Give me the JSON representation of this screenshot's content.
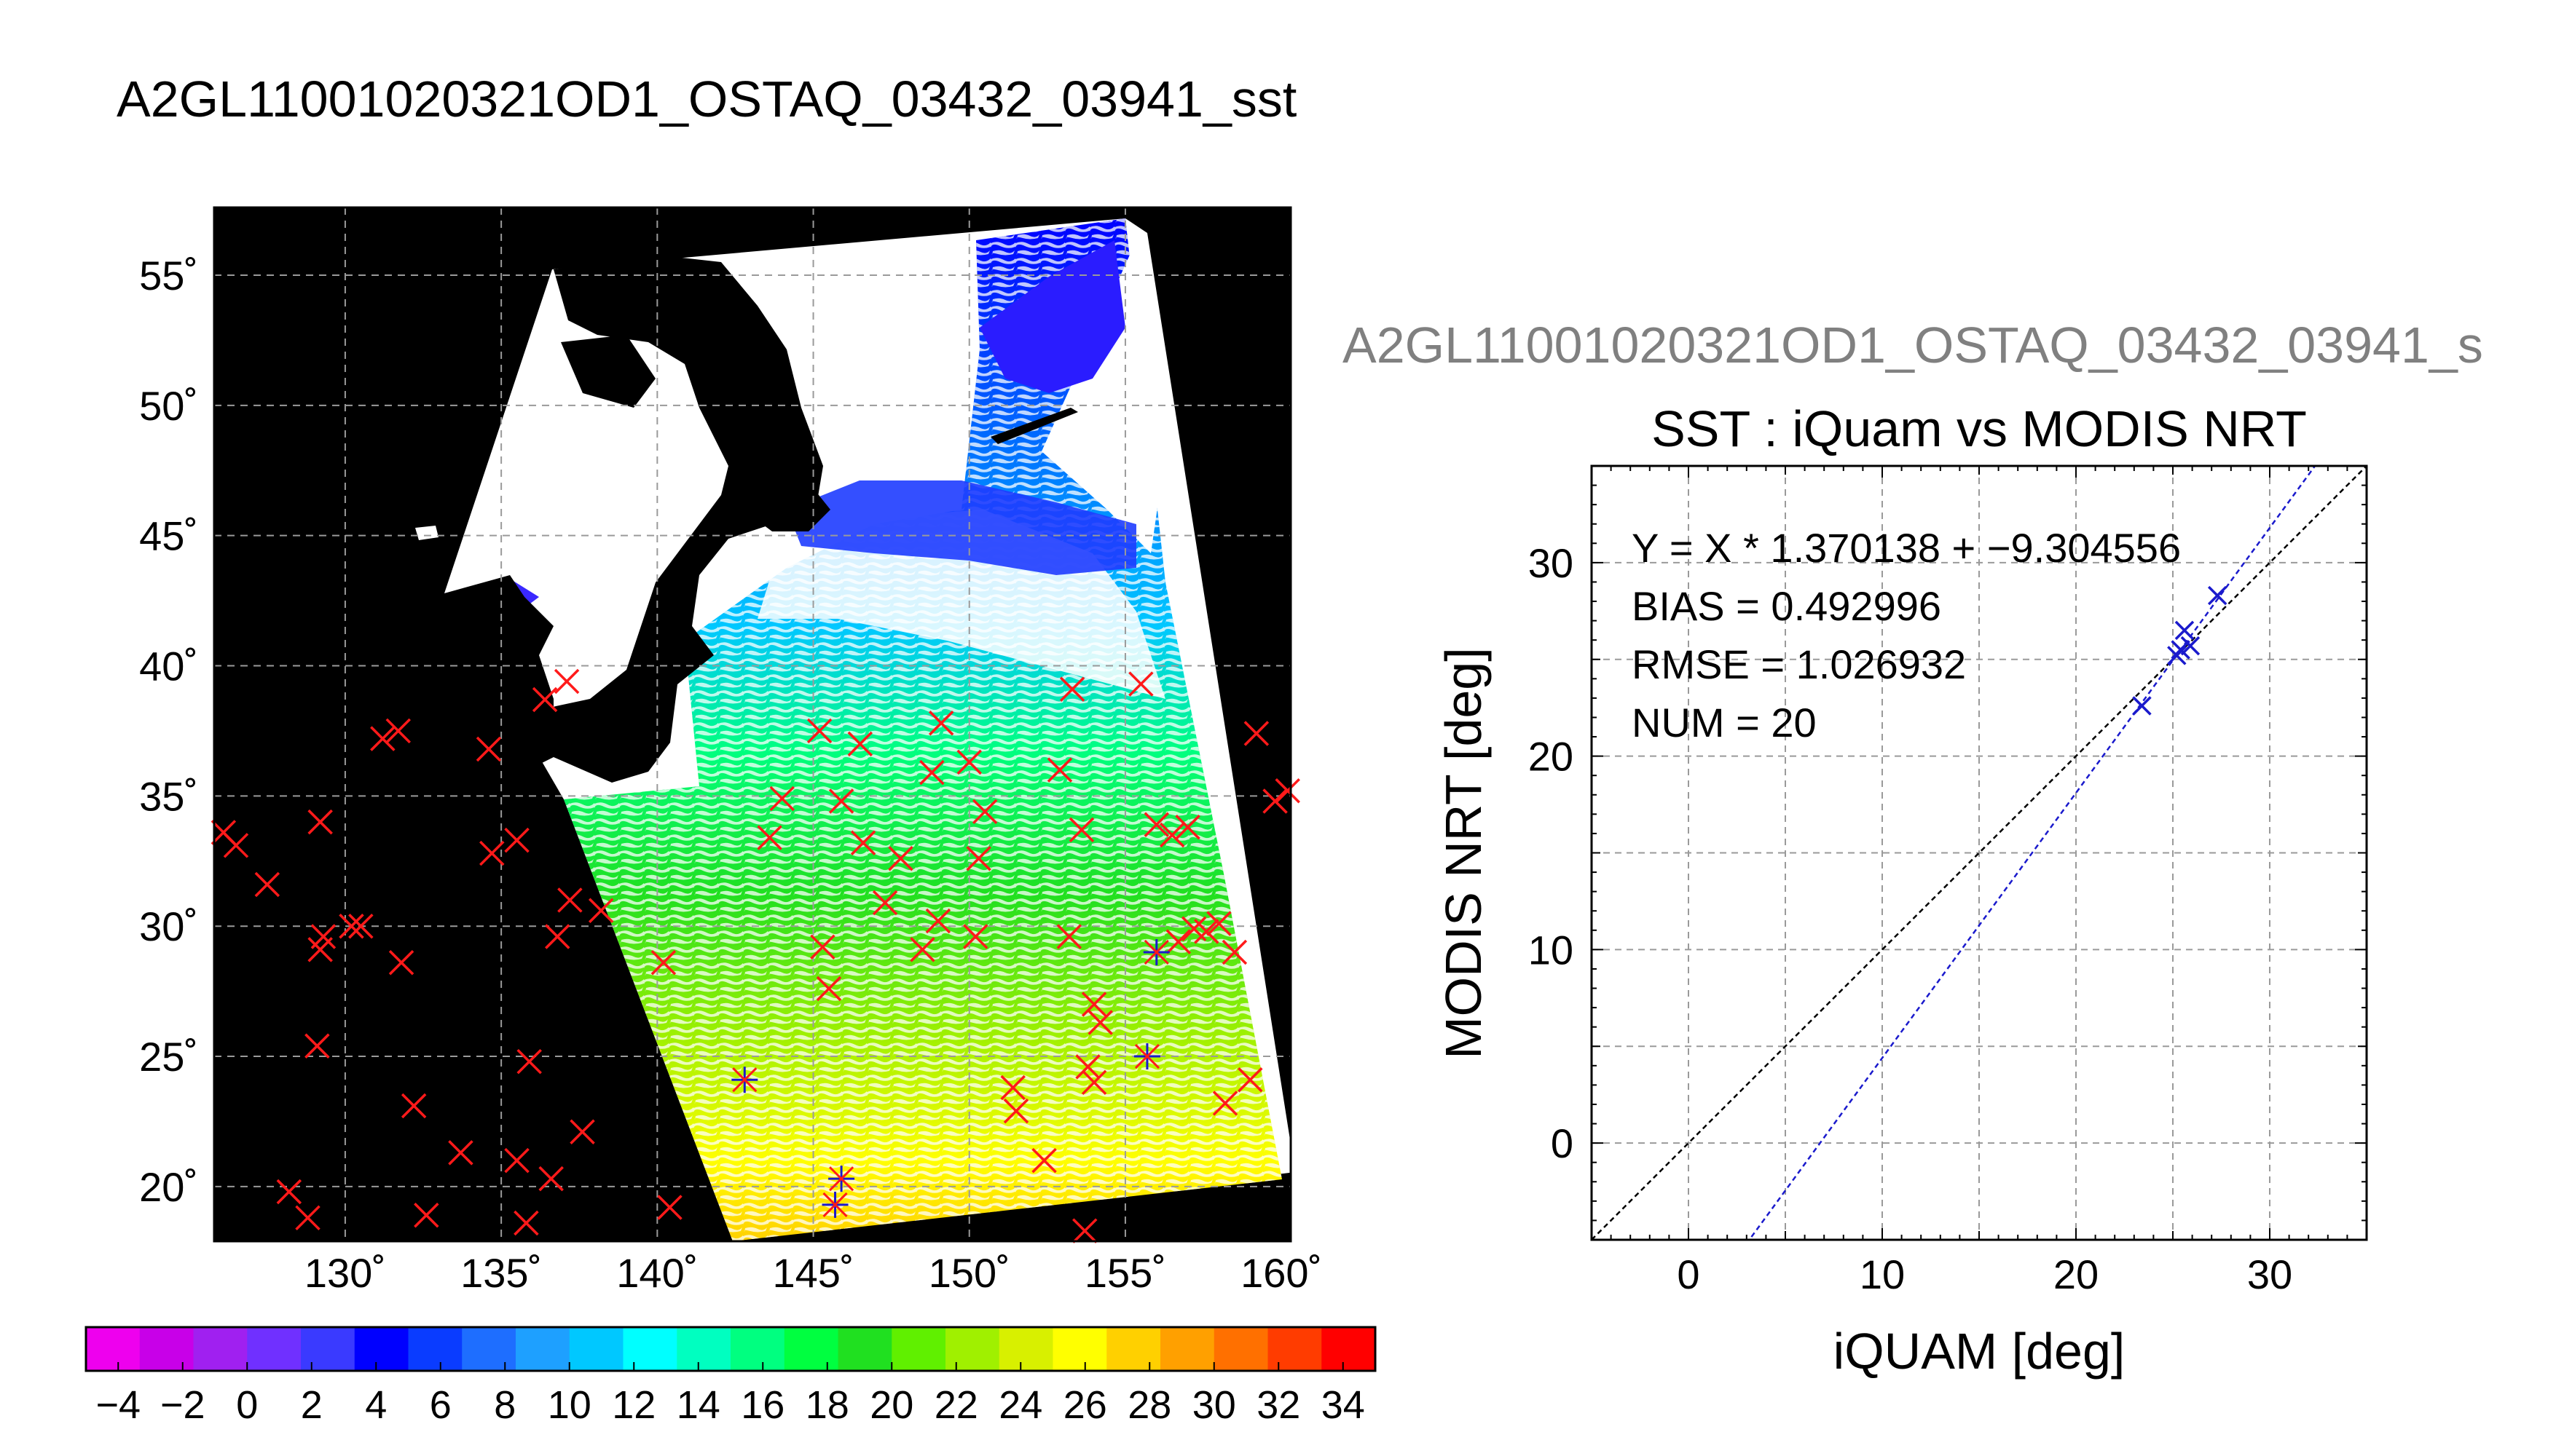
{
  "page": {
    "title": "A2GL11001020321OD1_OSTAQ_03432_03941_sst",
    "subtitle_clipped": "A2GL11001020321OD1_OSTAQ_03432_03941_s"
  },
  "colors": {
    "background": "#ffffff",
    "map_background": "#000000",
    "land": "#000000",
    "grid": "#9a9a9a",
    "cross_outside": "#ff1a1a",
    "cross_matched": "#1a1acc",
    "fit_line": "#1a1acc",
    "identity_line": "#000000",
    "subtitle_text": "#808080"
  },
  "map": {
    "lon_ticks": [
      "130˚",
      "135˚",
      "140˚",
      "145˚",
      "150˚",
      "155˚",
      "160˚"
    ],
    "lat_ticks": [
      "55˚",
      "50˚",
      "45˚",
      "40˚",
      "35˚",
      "30˚",
      "25˚",
      "20˚"
    ],
    "lon_range": [
      125.8,
      160.3
    ],
    "lat_range": [
      17.9,
      57.6
    ],
    "observations_outside_swath": [
      [
        126.1,
        33.6
      ],
      [
        126.5,
        33.1
      ],
      [
        127.5,
        31.6
      ],
      [
        128.2,
        19.8
      ],
      [
        128.8,
        18.8
      ],
      [
        129.1,
        25.4
      ],
      [
        129.2,
        29.1
      ],
      [
        129.3,
        29.6
      ],
      [
        129.2,
        34.0
      ],
      [
        130.2,
        30.0
      ],
      [
        130.5,
        30.0
      ],
      [
        131.2,
        37.2
      ],
      [
        131.7,
        37.5
      ],
      [
        131.8,
        28.6
      ],
      [
        132.2,
        23.1
      ],
      [
        132.6,
        18.9
      ],
      [
        133.7,
        21.3
      ],
      [
        134.6,
        36.8
      ],
      [
        134.7,
        32.8
      ],
      [
        135.5,
        33.3
      ],
      [
        135.5,
        21.0
      ],
      [
        135.8,
        18.6
      ],
      [
        135.9,
        24.8
      ],
      [
        136.6,
        20.3
      ],
      [
        136.8,
        29.6
      ],
      [
        137.1,
        39.4
      ],
      [
        137.2,
        31.0
      ],
      [
        137.6,
        22.1
      ],
      [
        138.2,
        30.6
      ],
      [
        136.4,
        38.7
      ],
      [
        140.2,
        28.6
      ],
      [
        140.4,
        19.2
      ],
      [
        144.0,
        34.9
      ],
      [
        143.6,
        33.4
      ],
      [
        145.2,
        37.5
      ],
      [
        145.5,
        27.6
      ],
      [
        145.9,
        34.8
      ],
      [
        146.5,
        37.0
      ],
      [
        146.6,
        33.2
      ],
      [
        147.3,
        30.9
      ],
      [
        147.8,
        32.6
      ],
      [
        148.5,
        29.1
      ],
      [
        148.8,
        35.9
      ],
      [
        149.0,
        30.2
      ],
      [
        149.1,
        37.8
      ],
      [
        150.0,
        36.3
      ],
      [
        150.3,
        32.6
      ],
      [
        150.2,
        29.6
      ],
      [
        150.5,
        34.4
      ],
      [
        151.4,
        23.8
      ],
      [
        151.5,
        22.9
      ],
      [
        152.9,
        36.0
      ],
      [
        153.3,
        39.1
      ],
      [
        152.4,
        21.0
      ],
      [
        153.6,
        33.7
      ],
      [
        153.2,
        29.6
      ],
      [
        154.0,
        27.0
      ],
      [
        154.2,
        26.3
      ],
      [
        153.8,
        24.6
      ],
      [
        154.0,
        24.0
      ],
      [
        155.5,
        39.3
      ],
      [
        156.0,
        33.9
      ],
      [
        156.7,
        29.4
      ],
      [
        156.5,
        33.5
      ],
      [
        157.2,
        29.9
      ],
      [
        157.6,
        29.8
      ],
      [
        158.0,
        30.1
      ],
      [
        158.2,
        23.2
      ],
      [
        158.5,
        29.0
      ],
      [
        159.0,
        24.1
      ],
      [
        159.2,
        37.4
      ],
      [
        159.8,
        34.8
      ],
      [
        160.2,
        35.2
      ],
      [
        157.0,
        33.8
      ],
      [
        153.7,
        18.3
      ],
      [
        145.3,
        29.2
      ]
    ],
    "observations_matched": [
      [
        142.8,
        24.1
      ],
      [
        145.9,
        20.3
      ],
      [
        145.7,
        19.3
      ],
      [
        155.7,
        25.0
      ],
      [
        156.0,
        29.0
      ]
    ]
  },
  "colorbar": {
    "min": -5,
    "max": 35,
    "tick_labels": [
      "−4",
      "−2",
      "0",
      "2",
      "4",
      "6",
      "8",
      "10",
      "12",
      "14",
      "16",
      "18",
      "20",
      "22",
      "24",
      "26",
      "28",
      "30",
      "32",
      "34"
    ],
    "colors": [
      "#ee00ee",
      "#c800e8",
      "#a020f0",
      "#7030ff",
      "#3a3aff",
      "#0000ff",
      "#0a3cff",
      "#1e6eff",
      "#1ea0ff",
      "#00c8ff",
      "#00ffff",
      "#00ffc0",
      "#00ff80",
      "#00ff40",
      "#20e020",
      "#60f000",
      "#a0f000",
      "#d8f000",
      "#ffff00",
      "#ffd000",
      "#ffa000",
      "#ff7000",
      "#ff3c00",
      "#ff0000"
    ]
  },
  "scatter_panel": {
    "title": "SST : iQuam vs MODIS NRT",
    "xlabel": "iQUAM [deg]",
    "ylabel": "MODIS NRT [deg]",
    "annotations": [
      "Y = X * 1.370138 + −9.304556",
      "BIAS = 0.492996",
      "RMSE = 1.026932",
      "NUM = 20"
    ]
  },
  "chart_data": {
    "type": "scatter",
    "title": "SST : iQuam vs MODIS NRT",
    "xlabel": "iQUAM [deg]",
    "ylabel": "MODIS NRT [deg]",
    "xlim": [
      -5,
      35
    ],
    "ylim": [
      -5,
      35
    ],
    "x_ticks": [
      0,
      10,
      20,
      30
    ],
    "y_ticks": [
      0,
      10,
      20,
      30
    ],
    "grid": true,
    "points": [
      {
        "x": 23.4,
        "y": 22.6
      },
      {
        "x": 25.2,
        "y": 25.2
      },
      {
        "x": 25.4,
        "y": 25.5
      },
      {
        "x": 25.6,
        "y": 26.5
      },
      {
        "x": 25.9,
        "y": 25.7
      },
      {
        "x": 27.3,
        "y": 28.3
      }
    ],
    "fit": {
      "slope": 1.370138,
      "intercept": -9.304556
    },
    "identity_line": true,
    "stats": {
      "bias": 0.492996,
      "rmse": 1.026932,
      "num": 20
    }
  }
}
